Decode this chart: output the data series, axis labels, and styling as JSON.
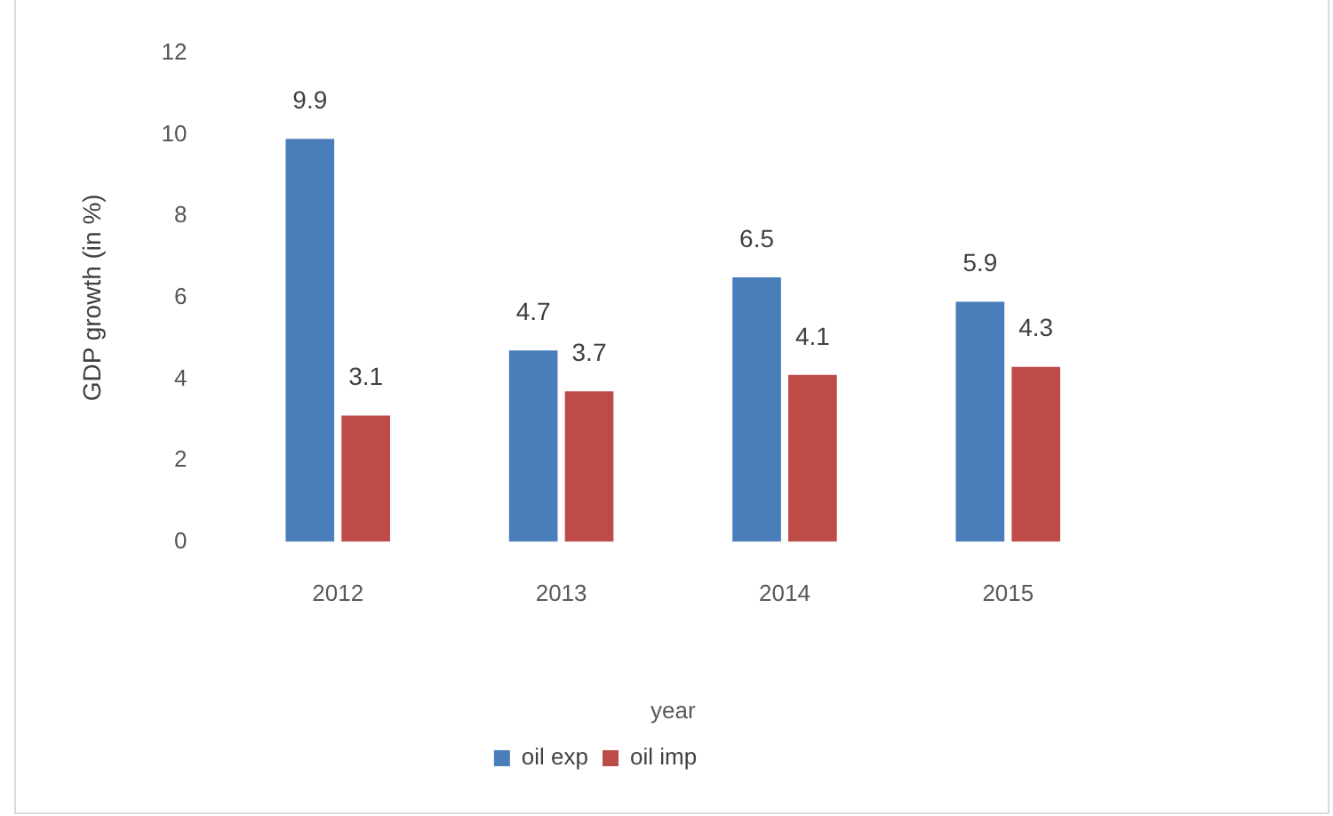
{
  "chart_data": {
    "type": "bar",
    "xlabel": "year",
    "ylabel": "GDP growth (in %)",
    "categories": [
      "2012",
      "2013",
      "2014",
      "2015"
    ],
    "series": [
      {
        "name": "oil exp",
        "color": "#4a7ebb",
        "values": [
          9.9,
          4.7,
          6.5,
          5.9
        ]
      },
      {
        "name": "oil imp",
        "color": "#be4b48",
        "values": [
          3.1,
          3.7,
          4.1,
          4.3
        ]
      }
    ],
    "ylim": [
      0,
      12
    ],
    "yticks": [
      0,
      2,
      4,
      6,
      8,
      10,
      12
    ],
    "grid": false,
    "legend": "bottom",
    "data_labels": true
  }
}
